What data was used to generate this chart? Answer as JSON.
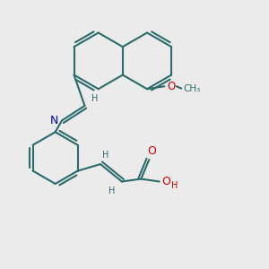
{
  "bg_color": "#ebebeb",
  "bond_color": "#2d6b6b",
  "N_color": "#0000cc",
  "O_color": "#cc0000",
  "bond_width": 1.5,
  "dbo": 0.012,
  "figsize": [
    3.0,
    3.0
  ],
  "dpi": 100,
  "xlim": [
    0.0,
    1.0
  ],
  "ylim": [
    0.0,
    1.0
  ]
}
